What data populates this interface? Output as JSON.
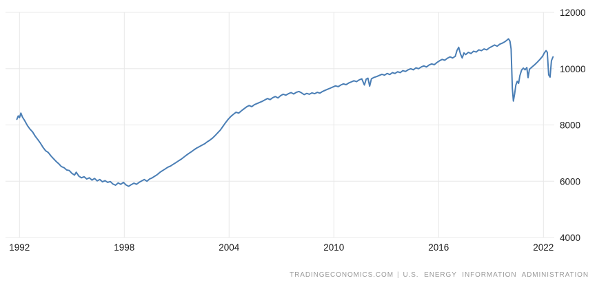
{
  "chart": {
    "footer": {
      "source": "TRADINGECONOMICS.COM",
      "separator": "|",
      "attribution": "U.S. ENERGY INFORMATION ADMINISTRATION"
    }
  },
  "chart_data": {
    "type": "line",
    "title": "",
    "xlabel": "",
    "ylabel": "",
    "x_ticks": [
      1992,
      1998,
      2004,
      2010,
      2016,
      2022
    ],
    "y_ticks": [
      4000,
      6000,
      8000,
      10000,
      12000
    ],
    "xlim": [
      1991.2,
      2022.62
    ],
    "ylim": [
      4000,
      12000
    ],
    "grid": true,
    "legend": false,
    "line_color": "#4a7eb5",
    "grid_color": "#e8e8e8",
    "points": [
      [
        1991.85,
        8200
      ],
      [
        1991.93,
        8320
      ],
      [
        1992.0,
        8260
      ],
      [
        1992.08,
        8420
      ],
      [
        1992.17,
        8280
      ],
      [
        1992.3,
        8150
      ],
      [
        1992.45,
        7980
      ],
      [
        1992.6,
        7850
      ],
      [
        1992.75,
        7750
      ],
      [
        1992.9,
        7600
      ],
      [
        1993.05,
        7480
      ],
      [
        1993.2,
        7350
      ],
      [
        1993.35,
        7200
      ],
      [
        1993.5,
        7080
      ],
      [
        1993.65,
        7020
      ],
      [
        1993.8,
        6900
      ],
      [
        1993.95,
        6800
      ],
      [
        1994.1,
        6700
      ],
      [
        1994.25,
        6620
      ],
      [
        1994.4,
        6520
      ],
      [
        1994.55,
        6480
      ],
      [
        1994.7,
        6400
      ],
      [
        1994.85,
        6380
      ],
      [
        1995.0,
        6280
      ],
      [
        1995.15,
        6220
      ],
      [
        1995.25,
        6320
      ],
      [
        1995.4,
        6180
      ],
      [
        1995.55,
        6120
      ],
      [
        1995.7,
        6160
      ],
      [
        1995.85,
        6080
      ],
      [
        1996.0,
        6120
      ],
      [
        1996.15,
        6040
      ],
      [
        1996.3,
        6100
      ],
      [
        1996.45,
        6010
      ],
      [
        1996.6,
        6060
      ],
      [
        1996.75,
        5980
      ],
      [
        1996.9,
        6020
      ],
      [
        1997.05,
        5960
      ],
      [
        1997.2,
        5990
      ],
      [
        1997.35,
        5900
      ],
      [
        1997.5,
        5860
      ],
      [
        1997.65,
        5940
      ],
      [
        1997.8,
        5890
      ],
      [
        1997.95,
        5960
      ],
      [
        1998.1,
        5870
      ],
      [
        1998.25,
        5820
      ],
      [
        1998.4,
        5880
      ],
      [
        1998.55,
        5930
      ],
      [
        1998.7,
        5890
      ],
      [
        1998.85,
        5960
      ],
      [
        1999.0,
        6010
      ],
      [
        1999.15,
        6060
      ],
      [
        1999.3,
        6000
      ],
      [
        1999.45,
        6080
      ],
      [
        1999.6,
        6120
      ],
      [
        1999.75,
        6180
      ],
      [
        1999.9,
        6240
      ],
      [
        2000.05,
        6320
      ],
      [
        2000.2,
        6380
      ],
      [
        2000.35,
        6440
      ],
      [
        2000.5,
        6500
      ],
      [
        2000.65,
        6540
      ],
      [
        2000.8,
        6600
      ],
      [
        2000.95,
        6660
      ],
      [
        2001.1,
        6720
      ],
      [
        2001.25,
        6780
      ],
      [
        2001.4,
        6850
      ],
      [
        2001.55,
        6920
      ],
      [
        2001.7,
        6990
      ],
      [
        2001.85,
        7050
      ],
      [
        2002.0,
        7120
      ],
      [
        2002.15,
        7180
      ],
      [
        2002.3,
        7230
      ],
      [
        2002.45,
        7280
      ],
      [
        2002.6,
        7330
      ],
      [
        2002.75,
        7400
      ],
      [
        2002.9,
        7460
      ],
      [
        2003.05,
        7530
      ],
      [
        2003.2,
        7620
      ],
      [
        2003.35,
        7720
      ],
      [
        2003.5,
        7820
      ],
      [
        2003.65,
        7950
      ],
      [
        2003.8,
        8080
      ],
      [
        2003.95,
        8200
      ],
      [
        2004.1,
        8300
      ],
      [
        2004.25,
        8380
      ],
      [
        2004.4,
        8450
      ],
      [
        2004.55,
        8420
      ],
      [
        2004.7,
        8500
      ],
      [
        2004.85,
        8570
      ],
      [
        2005.0,
        8640
      ],
      [
        2005.15,
        8690
      ],
      [
        2005.3,
        8650
      ],
      [
        2005.45,
        8720
      ],
      [
        2005.6,
        8760
      ],
      [
        2005.75,
        8800
      ],
      [
        2005.9,
        8840
      ],
      [
        2006.05,
        8890
      ],
      [
        2006.2,
        8940
      ],
      [
        2006.35,
        8900
      ],
      [
        2006.5,
        8970
      ],
      [
        2006.65,
        9010
      ],
      [
        2006.8,
        8960
      ],
      [
        2006.95,
        9040
      ],
      [
        2007.1,
        9090
      ],
      [
        2007.25,
        9060
      ],
      [
        2007.4,
        9110
      ],
      [
        2007.55,
        9150
      ],
      [
        2007.7,
        9100
      ],
      [
        2007.85,
        9160
      ],
      [
        2008.0,
        9190
      ],
      [
        2008.15,
        9140
      ],
      [
        2008.3,
        9080
      ],
      [
        2008.45,
        9120
      ],
      [
        2008.6,
        9090
      ],
      [
        2008.75,
        9140
      ],
      [
        2008.9,
        9110
      ],
      [
        2009.05,
        9160
      ],
      [
        2009.2,
        9130
      ],
      [
        2009.35,
        9190
      ],
      [
        2009.5,
        9230
      ],
      [
        2009.65,
        9270
      ],
      [
        2009.8,
        9310
      ],
      [
        2009.95,
        9350
      ],
      [
        2010.1,
        9390
      ],
      [
        2010.25,
        9360
      ],
      [
        2010.4,
        9420
      ],
      [
        2010.55,
        9460
      ],
      [
        2010.7,
        9430
      ],
      [
        2010.85,
        9490
      ],
      [
        2011.0,
        9530
      ],
      [
        2011.15,
        9570
      ],
      [
        2011.3,
        9540
      ],
      [
        2011.45,
        9600
      ],
      [
        2011.6,
        9640
      ],
      [
        2011.75,
        9420
      ],
      [
        2011.85,
        9630
      ],
      [
        2011.95,
        9660
      ],
      [
        2012.05,
        9380
      ],
      [
        2012.15,
        9640
      ],
      [
        2012.3,
        9690
      ],
      [
        2012.45,
        9720
      ],
      [
        2012.6,
        9760
      ],
      [
        2012.75,
        9800
      ],
      [
        2012.9,
        9770
      ],
      [
        2013.05,
        9830
      ],
      [
        2013.2,
        9790
      ],
      [
        2013.35,
        9860
      ],
      [
        2013.5,
        9830
      ],
      [
        2013.65,
        9890
      ],
      [
        2013.8,
        9860
      ],
      [
        2013.95,
        9930
      ],
      [
        2014.1,
        9900
      ],
      [
        2014.25,
        9960
      ],
      [
        2014.4,
        10000
      ],
      [
        2014.55,
        9960
      ],
      [
        2014.7,
        10030
      ],
      [
        2014.85,
        10000
      ],
      [
        2015.0,
        10060
      ],
      [
        2015.15,
        10100
      ],
      [
        2015.3,
        10060
      ],
      [
        2015.45,
        10130
      ],
      [
        2015.6,
        10170
      ],
      [
        2015.75,
        10140
      ],
      [
        2015.9,
        10220
      ],
      [
        2016.05,
        10280
      ],
      [
        2016.2,
        10330
      ],
      [
        2016.35,
        10300
      ],
      [
        2016.5,
        10370
      ],
      [
        2016.65,
        10420
      ],
      [
        2016.8,
        10380
      ],
      [
        2016.95,
        10440
      ],
      [
        2017.05,
        10650
      ],
      [
        2017.15,
        10760
      ],
      [
        2017.25,
        10520
      ],
      [
        2017.35,
        10380
      ],
      [
        2017.45,
        10560
      ],
      [
        2017.55,
        10500
      ],
      [
        2017.7,
        10580
      ],
      [
        2017.85,
        10540
      ],
      [
        2018.0,
        10620
      ],
      [
        2018.15,
        10590
      ],
      [
        2018.3,
        10670
      ],
      [
        2018.45,
        10640
      ],
      [
        2018.6,
        10700
      ],
      [
        2018.75,
        10670
      ],
      [
        2018.9,
        10740
      ],
      [
        2019.05,
        10790
      ],
      [
        2019.2,
        10840
      ],
      [
        2019.35,
        10800
      ],
      [
        2019.5,
        10870
      ],
      [
        2019.65,
        10910
      ],
      [
        2019.8,
        10960
      ],
      [
        2019.9,
        11010
      ],
      [
        2020.0,
        11060
      ],
      [
        2020.08,
        10980
      ],
      [
        2020.15,
        10700
      ],
      [
        2020.22,
        9300
      ],
      [
        2020.28,
        8850
      ],
      [
        2020.35,
        9100
      ],
      [
        2020.42,
        9420
      ],
      [
        2020.5,
        9550
      ],
      [
        2020.58,
        9480
      ],
      [
        2020.65,
        9750
      ],
      [
        2020.75,
        9950
      ],
      [
        2020.85,
        10020
      ],
      [
        2020.95,
        9960
      ],
      [
        2021.05,
        10040
      ],
      [
        2021.12,
        9680
      ],
      [
        2021.2,
        9980
      ],
      [
        2021.35,
        10060
      ],
      [
        2021.5,
        10140
      ],
      [
        2021.65,
        10230
      ],
      [
        2021.8,
        10330
      ],
      [
        2021.95,
        10440
      ],
      [
        2022.05,
        10560
      ],
      [
        2022.15,
        10640
      ],
      [
        2022.22,
        10580
      ],
      [
        2022.3,
        9780
      ],
      [
        2022.38,
        9700
      ],
      [
        2022.46,
        10280
      ],
      [
        2022.55,
        10420
      ]
    ]
  }
}
